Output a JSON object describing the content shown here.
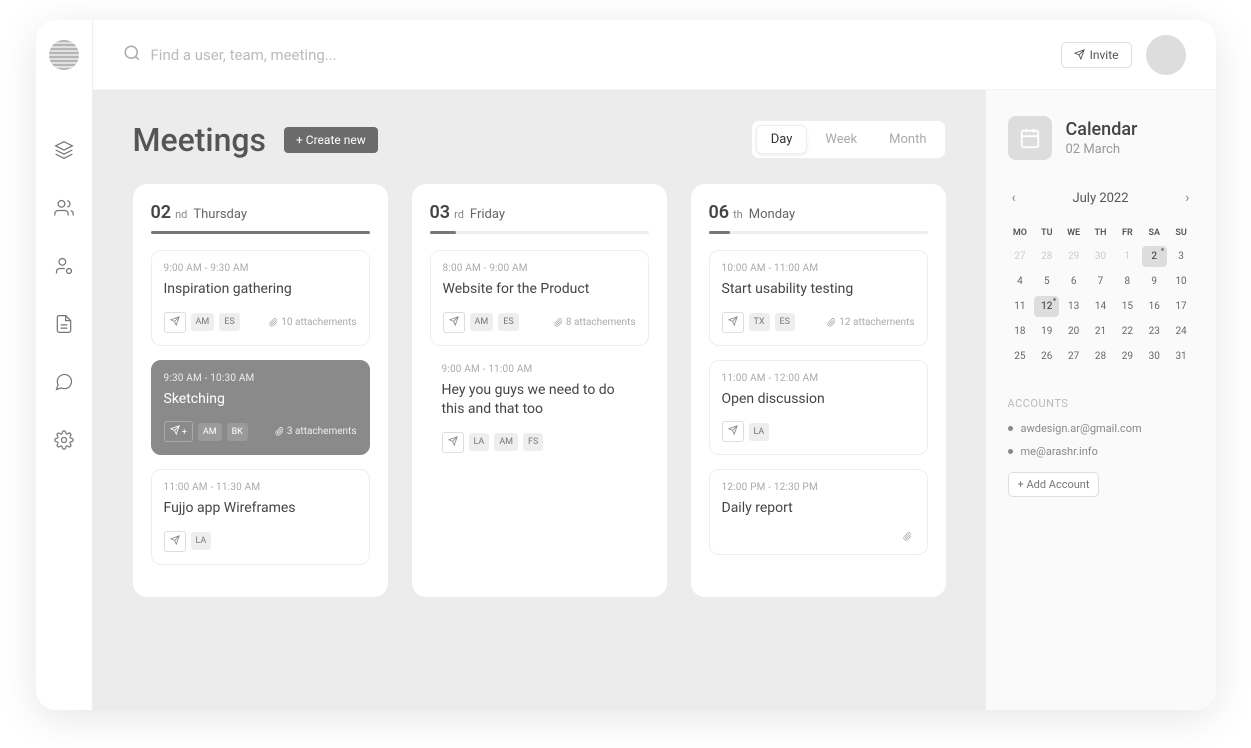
{
  "search": {
    "placeholder": "Find a user, team, meeting..."
  },
  "topbar": {
    "invite_label": "Invite"
  },
  "page": {
    "title": "Meetings",
    "create_label": "+ Create new",
    "views": {
      "day": "Day",
      "week": "Week",
      "month": "Month",
      "active": "day"
    }
  },
  "columns": [
    {
      "day_num": "02",
      "ordinal": "nd",
      "weekday": "Thursday",
      "progress_pct": 100,
      "cards": [
        {
          "time": "9:00 AM - 9:30 AM",
          "title": "Inspiration gathering",
          "chips": [
            "AM",
            "ES"
          ],
          "attachments_label": "10 attachements",
          "variant": "light",
          "show_attach": true
        },
        {
          "time": "9:30 AM - 10:30 AM",
          "title": "Sketching",
          "chips": [
            "AM",
            "BK"
          ],
          "extra_plus": true,
          "attachments_label": "3 attachements",
          "variant": "dark",
          "show_attach": true
        },
        {
          "time": "11:00 AM - 11:30 AM",
          "title": "Fujjo app Wireframes",
          "chips": [
            "LA"
          ],
          "attachments_label": "",
          "variant": "light",
          "show_attach": false
        }
      ]
    },
    {
      "day_num": "03",
      "ordinal": "rd",
      "weekday": "Friday",
      "progress_pct": 12,
      "cards": [
        {
          "time": "8:00 AM - 9:00 AM",
          "title": "Website for the Product",
          "chips": [
            "AM",
            "ES"
          ],
          "attachments_label": "8 attachements",
          "variant": "light",
          "show_attach": true
        },
        {
          "time": "9:00 AM - 11:00 AM",
          "title": "Hey you guys we need to do this and that too",
          "chips": [
            "LA",
            "AM",
            "FS"
          ],
          "attachments_label": "",
          "variant": "noborder",
          "show_attach": false
        }
      ]
    },
    {
      "day_num": "06",
      "ordinal": "th",
      "weekday": "Monday",
      "progress_pct": 10,
      "cards": [
        {
          "time": "10:00 AM - 11:00 AM",
          "title": "Start usability testing",
          "chips": [
            "TX",
            "ES"
          ],
          "attachments_label": "12 attachements",
          "variant": "light",
          "show_attach": true
        },
        {
          "time": "11:00 AM - 12:00 AM",
          "title": "Open discussion",
          "chips": [
            "LA"
          ],
          "attachments_label": "",
          "variant": "light",
          "show_attach": false
        },
        {
          "time": "12:00 PM - 12:30 PM",
          "title": "Daily report",
          "chips": [],
          "attachments_label": "",
          "variant": "light",
          "show_attach": true,
          "attach_icon_only": true,
          "no_send": true
        }
      ]
    }
  ],
  "calendar": {
    "title": "Calendar",
    "subtitle": "02 March",
    "month_label": "July 2022",
    "dow": [
      "MO",
      "TU",
      "WE",
      "TH",
      "FR",
      "SA",
      "SU"
    ],
    "leading_muted": [
      27,
      28,
      29,
      30,
      1
    ],
    "selected": [
      2,
      12
    ],
    "dotted": [
      2,
      12
    ],
    "days_in_month": 31
  },
  "accounts": {
    "heading": "ACCOUNTS",
    "list": [
      "awdesign.ar@gmail.com",
      "me@arashr.info"
    ],
    "add_label": "+ Add Account"
  },
  "colors": {
    "bg_muted": "#ececec",
    "card_dark": "#8a8a8a",
    "text_muted": "#aaa",
    "text": "#444"
  }
}
